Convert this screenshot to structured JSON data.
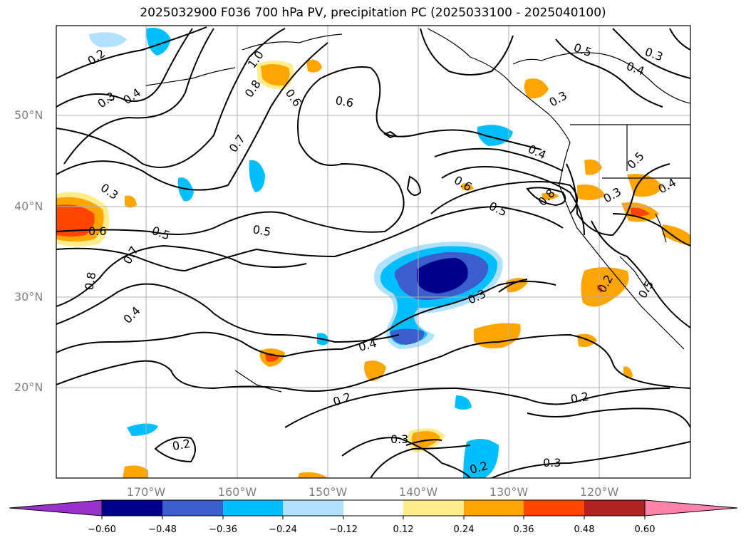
{
  "title": "2025032900 F036 700 hPa PV, precipitation PC (2025033100 - 2025040100)",
  "lat_labels": [
    "20°N",
    "30°N",
    "40°N",
    "50°N"
  ],
  "lon_labels": [
    "170°W",
    "160°W",
    "150°W",
    "140°W",
    "130°W",
    "120°W"
  ],
  "contour_labels": [
    "0.2",
    "0.3",
    "0.4",
    "0.3",
    "0.7",
    "1.0",
    "0.8",
    "0.6",
    "0.6",
    "0.5",
    "0.3",
    "0.4",
    "0.4",
    "0.3",
    "0.6",
    "0.5",
    "0.8",
    "0.5",
    "0.3",
    "0.4",
    "0.6",
    "0.5",
    "0.5",
    "0.7",
    "0.8",
    "0.4",
    "0.3",
    "0.4",
    "0.2",
    "0.2",
    "0.3",
    "0.2",
    "0.3",
    "0.2",
    "0.2",
    "0.5"
  ],
  "colorbar": {
    "ticks": [
      "−0.60",
      "−0.48",
      "−0.36",
      "−0.24",
      "−0.12",
      "0.12",
      "0.24",
      "0.36",
      "0.48",
      "0.60"
    ],
    "colors": [
      "#9932cc",
      "#00008b",
      "#3a5fcd",
      "#00bfff",
      "#b0e2ff",
      "#ffffff",
      "#ffec8b",
      "#ffa500",
      "#ff4500",
      "#b22222",
      "#ff82ab"
    ]
  }
}
